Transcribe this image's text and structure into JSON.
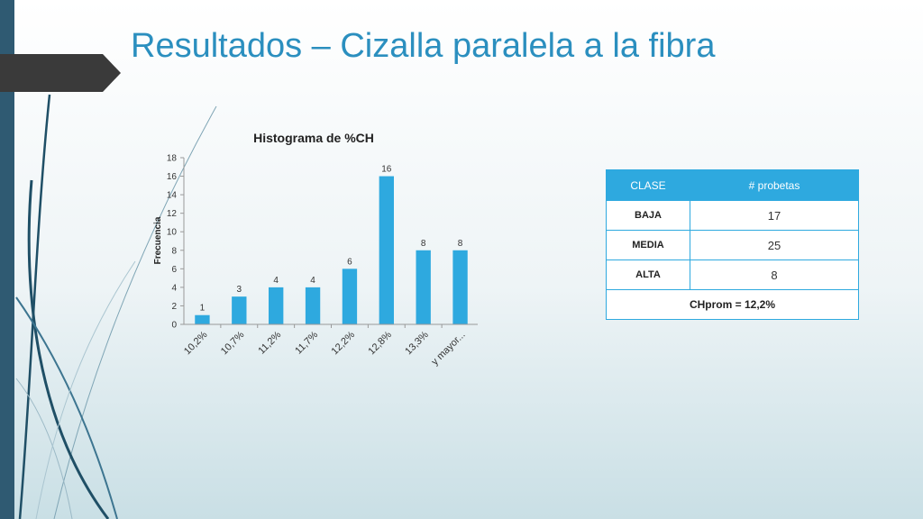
{
  "slide": {
    "title": "Resultados – Cizalla paralela a la fibra"
  },
  "chart_data": {
    "type": "bar",
    "title": "Histograma de %CH",
    "xlabel": "",
    "ylabel": "Frecuencia",
    "categories": [
      "10,2%",
      "10,7%",
      "11,2%",
      "11,7%",
      "12,2%",
      "12,8%",
      "13,3%",
      "y mayor..."
    ],
    "values": [
      1,
      3,
      4,
      4,
      6,
      16,
      8,
      8
    ],
    "ylim": [
      0,
      18
    ],
    "yticks": [
      0,
      2,
      4,
      6,
      8,
      10,
      12,
      14,
      16,
      18
    ],
    "data_labels": true,
    "grid": false,
    "bar_color": "#2ea9df"
  },
  "table": {
    "headers": [
      "CLASE",
      "# probetas"
    ],
    "rows": [
      {
        "clase": "BAJA",
        "count": "17"
      },
      {
        "clase": "MEDIA",
        "count": "25"
      },
      {
        "clase": "ALTA",
        "count": "8"
      }
    ],
    "footer": "CHprom = 12,2%"
  },
  "colors": {
    "accent": "#2ea9df",
    "title": "#2b8fbf",
    "sidebar": "#2f5a72"
  }
}
